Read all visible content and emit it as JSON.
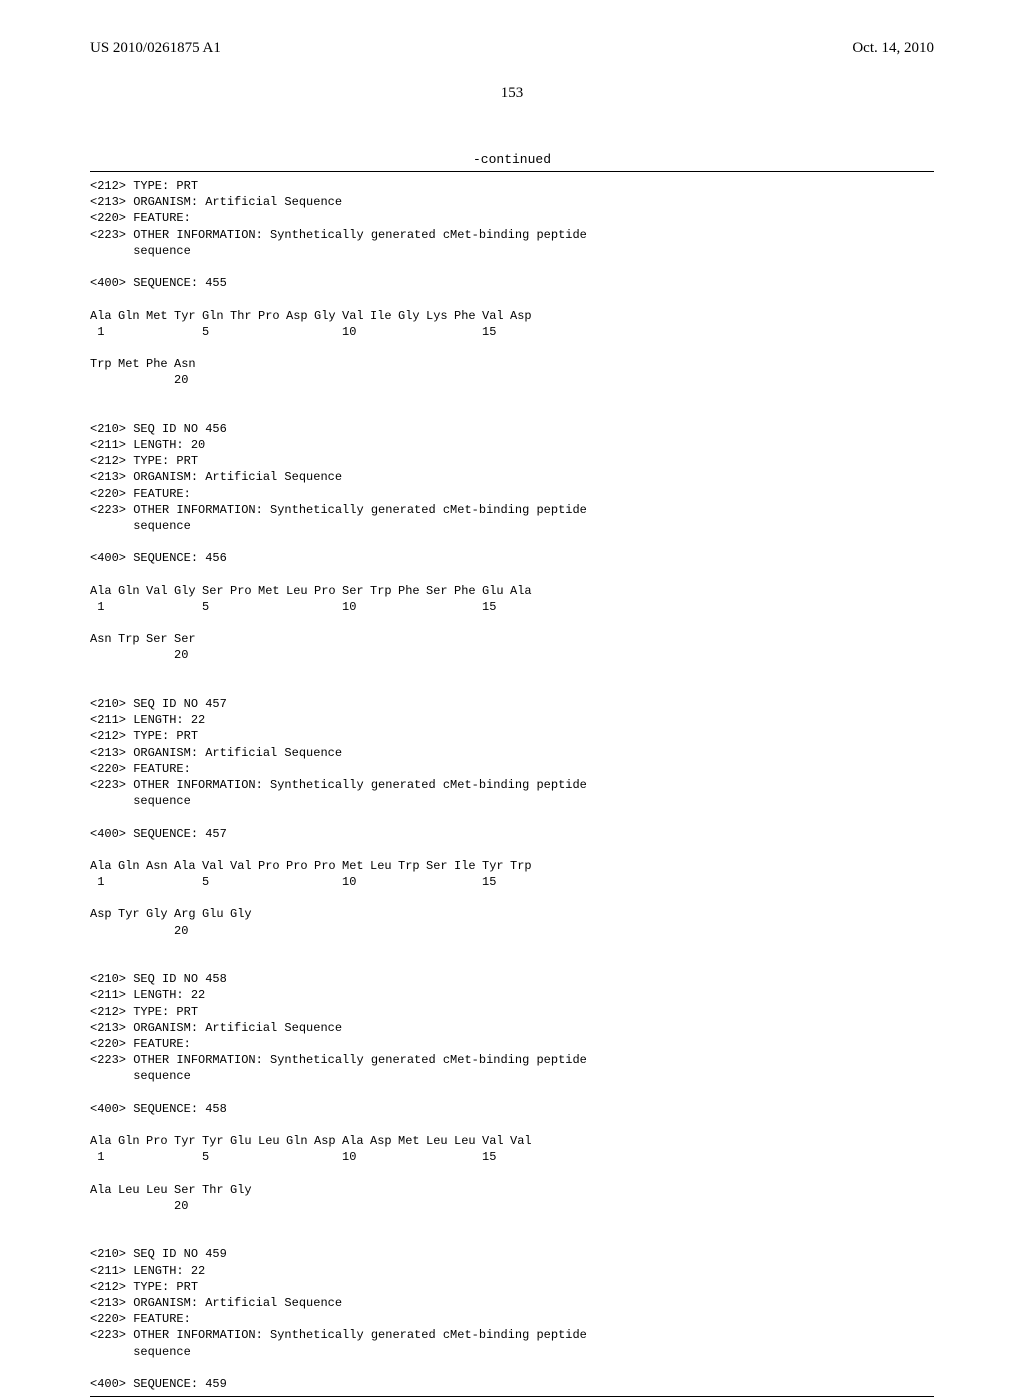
{
  "header": {
    "pub_number": "US 2010/0261875 A1",
    "pub_date": "Oct. 14, 2010"
  },
  "page_number": "153",
  "continued_label": "-continued",
  "entries": [
    {
      "lines": [
        "<212> TYPE: PRT",
        "<213> ORGANISM: Artificial Sequence",
        "<220> FEATURE:",
        "<223> OTHER INFORMATION: Synthetically generated cMet-binding peptide",
        "      sequence",
        "",
        "<400> SEQUENCE: 455",
        ""
      ],
      "sequences": [
        {
          "residues": [
            "Ala",
            "Gln",
            "Met",
            "Tyr",
            "Gln",
            "Thr",
            "Pro",
            "Asp",
            "Gly",
            "Val",
            "Ile",
            "Gly",
            "Lys",
            "Phe",
            "Val",
            "Asp"
          ],
          "positions": [
            " 1",
            "",
            "",
            "",
            "5",
            "",
            "",
            "",
            "",
            "10",
            "",
            "",
            "",
            "",
            "15",
            ""
          ]
        },
        {
          "residues": [
            "Trp",
            "Met",
            "Phe",
            "Asn"
          ],
          "positions": [
            "",
            "",
            "",
            "20"
          ]
        }
      ]
    },
    {
      "lines": [
        "<210> SEQ ID NO 456",
        "<211> LENGTH: 20",
        "<212> TYPE: PRT",
        "<213> ORGANISM: Artificial Sequence",
        "<220> FEATURE:",
        "<223> OTHER INFORMATION: Synthetically generated cMet-binding peptide",
        "      sequence",
        "",
        "<400> SEQUENCE: 456",
        ""
      ],
      "sequences": [
        {
          "residues": [
            "Ala",
            "Gln",
            "Val",
            "Gly",
            "Ser",
            "Pro",
            "Met",
            "Leu",
            "Pro",
            "Ser",
            "Trp",
            "Phe",
            "Ser",
            "Phe",
            "Glu",
            "Ala"
          ],
          "positions": [
            " 1",
            "",
            "",
            "",
            "5",
            "",
            "",
            "",
            "",
            "10",
            "",
            "",
            "",
            "",
            "15",
            ""
          ]
        },
        {
          "residues": [
            "Asn",
            "Trp",
            "Ser",
            "Ser"
          ],
          "positions": [
            "",
            "",
            "",
            "20"
          ]
        }
      ]
    },
    {
      "lines": [
        "<210> SEQ ID NO 457",
        "<211> LENGTH: 22",
        "<212> TYPE: PRT",
        "<213> ORGANISM: Artificial Sequence",
        "<220> FEATURE:",
        "<223> OTHER INFORMATION: Synthetically generated cMet-binding peptide",
        "      sequence",
        "",
        "<400> SEQUENCE: 457",
        ""
      ],
      "sequences": [
        {
          "residues": [
            "Ala",
            "Gln",
            "Asn",
            "Ala",
            "Val",
            "Val",
            "Pro",
            "Pro",
            "Pro",
            "Met",
            "Leu",
            "Trp",
            "Ser",
            "Ile",
            "Tyr",
            "Trp"
          ],
          "positions": [
            " 1",
            "",
            "",
            "",
            "5",
            "",
            "",
            "",
            "",
            "10",
            "",
            "",
            "",
            "",
            "15",
            ""
          ]
        },
        {
          "residues": [
            "Asp",
            "Tyr",
            "Gly",
            "Arg",
            "Glu",
            "Gly"
          ],
          "positions": [
            "",
            "",
            "",
            "20",
            "",
            ""
          ]
        }
      ]
    },
    {
      "lines": [
        "<210> SEQ ID NO 458",
        "<211> LENGTH: 22",
        "<212> TYPE: PRT",
        "<213> ORGANISM: Artificial Sequence",
        "<220> FEATURE:",
        "<223> OTHER INFORMATION: Synthetically generated cMet-binding peptide",
        "      sequence",
        "",
        "<400> SEQUENCE: 458",
        ""
      ],
      "sequences": [
        {
          "residues": [
            "Ala",
            "Gln",
            "Pro",
            "Tyr",
            "Tyr",
            "Glu",
            "Leu",
            "Gln",
            "Asp",
            "Ala",
            "Asp",
            "Met",
            "Leu",
            "Leu",
            "Val",
            "Val"
          ],
          "positions": [
            " 1",
            "",
            "",
            "",
            "5",
            "",
            "",
            "",
            "",
            "10",
            "",
            "",
            "",
            "",
            "15",
            ""
          ]
        },
        {
          "residues": [
            "Ala",
            "Leu",
            "Leu",
            "Ser",
            "Thr",
            "Gly"
          ],
          "positions": [
            "",
            "",
            "",
            "20",
            "",
            ""
          ]
        }
      ]
    },
    {
      "lines": [
        "<210> SEQ ID NO 459",
        "<211> LENGTH: 22",
        "<212> TYPE: PRT",
        "<213> ORGANISM: Artificial Sequence",
        "<220> FEATURE:",
        "<223> OTHER INFORMATION: Synthetically generated cMet-binding peptide",
        "      sequence",
        "",
        "<400> SEQUENCE: 459"
      ],
      "sequences": []
    }
  ]
}
